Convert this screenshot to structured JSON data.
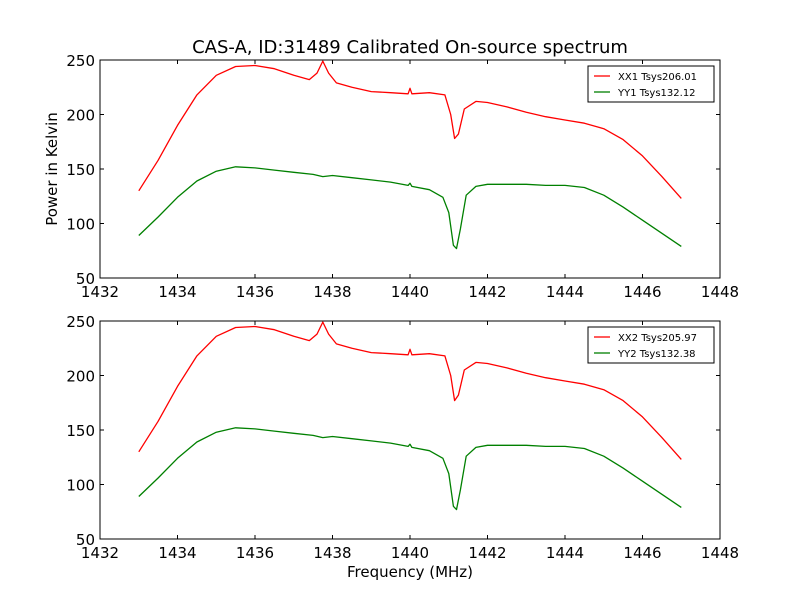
{
  "chart_data": [
    {
      "type": "line",
      "title": "CAS-A, ID:31489 Calibrated On-source spectrum",
      "xlabel": "",
      "ylabel": "Power in Kelvin",
      "xlim": [
        1432,
        1448
      ],
      "ylim": [
        50,
        250
      ],
      "xticks": [
        "1432",
        "1434",
        "1436",
        "1438",
        "1440",
        "1442",
        "1444",
        "1446",
        "1448"
      ],
      "yticks": [
        "50",
        "100",
        "150",
        "200",
        "250"
      ],
      "legend_position": "top-right",
      "series": [
        {
          "name": "XX1 Tsys206.01",
          "color": "#ff0000",
          "x": [
            1433.0,
            1433.5,
            1434.0,
            1434.5,
            1435.0,
            1435.5,
            1436.0,
            1436.5,
            1437.0,
            1437.4,
            1437.6,
            1437.75,
            1437.9,
            1438.1,
            1438.5,
            1439.0,
            1439.5,
            1439.95,
            1440.0,
            1440.05,
            1440.5,
            1440.9,
            1441.05,
            1441.15,
            1441.25,
            1441.4,
            1441.7,
            1442.0,
            1442.5,
            1443.0,
            1443.5,
            1444.0,
            1444.5,
            1445.0,
            1445.5,
            1446.0,
            1446.5,
            1447.0
          ],
          "values": [
            130,
            158,
            190,
            218,
            236,
            244,
            245,
            242,
            236,
            232,
            238,
            249,
            238,
            229,
            225,
            221,
            220,
            219,
            224,
            219,
            220,
            218,
            200,
            178,
            182,
            205,
            212,
            211,
            207,
            202,
            198,
            195,
            192,
            187,
            177,
            162,
            143,
            123
          ]
        },
        {
          "name": "YY1 Tsys132.12",
          "color": "#008000",
          "x": [
            1433.0,
            1433.5,
            1434.0,
            1434.5,
            1435.0,
            1435.5,
            1436.0,
            1436.5,
            1437.0,
            1437.5,
            1437.75,
            1438.0,
            1438.5,
            1439.0,
            1439.5,
            1439.95,
            1440.0,
            1440.05,
            1440.5,
            1440.85,
            1441.0,
            1441.12,
            1441.2,
            1441.3,
            1441.45,
            1441.7,
            1442.0,
            1442.5,
            1443.0,
            1443.5,
            1444.0,
            1444.5,
            1445.0,
            1445.5,
            1446.0,
            1446.5,
            1447.0
          ],
          "values": [
            89,
            106,
            124,
            139,
            148,
            152,
            151,
            149,
            147,
            145,
            143,
            144,
            142,
            140,
            138,
            135,
            137,
            134,
            131,
            124,
            110,
            80,
            77,
            95,
            126,
            134,
            136,
            136,
            136,
            135,
            135,
            133,
            126,
            115,
            103,
            91,
            79
          ]
        }
      ]
    },
    {
      "type": "line",
      "title": "",
      "xlabel": "Frequency (MHz)",
      "ylabel": "",
      "xlim": [
        1432,
        1448
      ],
      "ylim": [
        50,
        250
      ],
      "xticks": [
        "1432",
        "1434",
        "1436",
        "1438",
        "1440",
        "1442",
        "1444",
        "1446",
        "1448"
      ],
      "yticks": [
        "50",
        "100",
        "150",
        "200",
        "250"
      ],
      "legend_position": "top-right",
      "series": [
        {
          "name": "XX2 Tsys205.97",
          "color": "#ff0000",
          "x": [
            1433.0,
            1433.5,
            1434.0,
            1434.5,
            1435.0,
            1435.5,
            1436.0,
            1436.5,
            1437.0,
            1437.4,
            1437.6,
            1437.75,
            1437.9,
            1438.1,
            1438.5,
            1439.0,
            1439.5,
            1439.95,
            1440.0,
            1440.05,
            1440.5,
            1440.9,
            1441.05,
            1441.15,
            1441.25,
            1441.4,
            1441.7,
            1442.0,
            1442.5,
            1443.0,
            1443.5,
            1444.0,
            1444.5,
            1445.0,
            1445.5,
            1446.0,
            1446.5,
            1447.0
          ],
          "values": [
            130,
            158,
            190,
            218,
            236,
            244,
            245,
            242,
            236,
            232,
            238,
            249,
            238,
            229,
            225,
            221,
            220,
            219,
            224,
            219,
            220,
            218,
            200,
            177,
            182,
            205,
            212,
            211,
            207,
            202,
            198,
            195,
            192,
            187,
            177,
            162,
            143,
            123
          ]
        },
        {
          "name": "YY2 Tsys132.38",
          "color": "#008000",
          "x": [
            1433.0,
            1433.5,
            1434.0,
            1434.5,
            1435.0,
            1435.5,
            1436.0,
            1436.5,
            1437.0,
            1437.5,
            1437.75,
            1438.0,
            1438.5,
            1439.0,
            1439.5,
            1439.95,
            1440.0,
            1440.05,
            1440.5,
            1440.85,
            1441.0,
            1441.12,
            1441.2,
            1441.3,
            1441.45,
            1441.7,
            1442.0,
            1442.5,
            1443.0,
            1443.5,
            1444.0,
            1444.5,
            1445.0,
            1445.5,
            1446.0,
            1446.5,
            1447.0
          ],
          "values": [
            89,
            106,
            124,
            139,
            148,
            152,
            151,
            149,
            147,
            145,
            143,
            144,
            142,
            140,
            138,
            135,
            137,
            134,
            131,
            124,
            110,
            80,
            77,
            95,
            126,
            134,
            136,
            136,
            136,
            135,
            135,
            133,
            126,
            115,
            103,
            91,
            79
          ]
        }
      ]
    }
  ]
}
